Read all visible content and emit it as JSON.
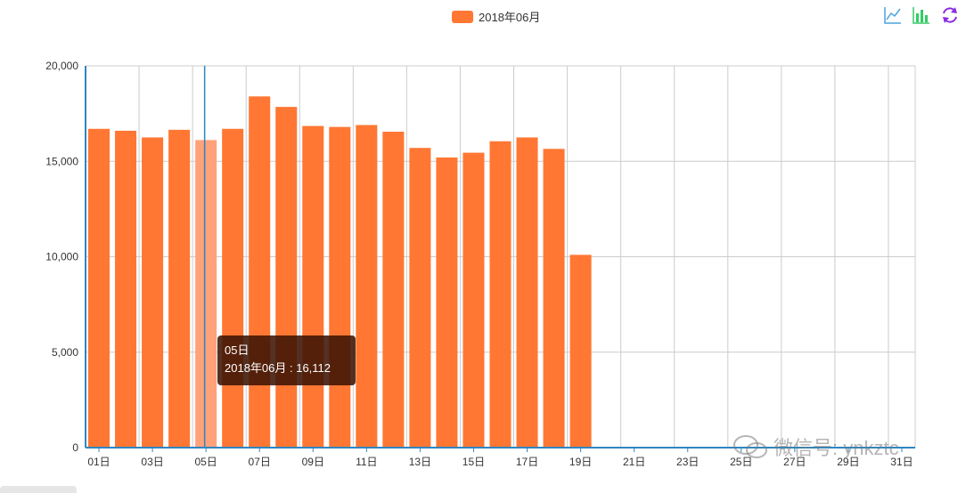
{
  "legend": {
    "label": "2018年06月",
    "color": "#ff7733"
  },
  "toolbox": [
    {
      "name": "line-chart-icon",
      "color": "#4aa3df"
    },
    {
      "name": "bar-chart-icon",
      "color": "#33cc66"
    },
    {
      "name": "restore-icon",
      "color": "#8a2be2"
    }
  ],
  "tooltip": {
    "title": "05日",
    "line": "2018年06月 : 16,112"
  },
  "watermark": {
    "text": "微信号: ynkztc"
  },
  "chart_data": {
    "type": "bar",
    "categories": [
      "01日",
      "02日",
      "03日",
      "04日",
      "05日",
      "06日",
      "07日",
      "08日",
      "09日",
      "10日",
      "11日",
      "12日",
      "13日",
      "14日",
      "15日",
      "16日",
      "17日",
      "18日",
      "19日",
      "20日",
      "21日",
      "22日",
      "23日",
      "24日",
      "25日",
      "26日",
      "27日",
      "28日",
      "29日",
      "30日",
      "31日"
    ],
    "x_tick_labels": [
      "01日",
      "03日",
      "05日",
      "07日",
      "09日",
      "11日",
      "13日",
      "15日",
      "17日",
      "19日",
      "21日",
      "23日",
      "25日",
      "27日",
      "29日",
      "31日"
    ],
    "series": [
      {
        "name": "2018年06月",
        "values": [
          16700,
          16600,
          16250,
          16650,
          16112,
          16700,
          18400,
          17850,
          16850,
          16800,
          16900,
          16550,
          15700,
          15200,
          15450,
          16050,
          16250,
          15650,
          10100,
          null,
          null,
          null,
          null,
          null,
          null,
          null,
          null,
          null,
          null,
          null,
          null
        ]
      }
    ],
    "highlight_index": 4,
    "y_ticks": [
      "0",
      "5,000",
      "10,000",
      "15,000",
      "20,000"
    ],
    "ylim": [
      0,
      20000
    ],
    "grid": true,
    "legend_position": "top-center",
    "colors": {
      "bar": "#ff7733",
      "highlight": "#ffa27a",
      "axis": "#2e86c1",
      "grid": "#cccccc"
    }
  }
}
